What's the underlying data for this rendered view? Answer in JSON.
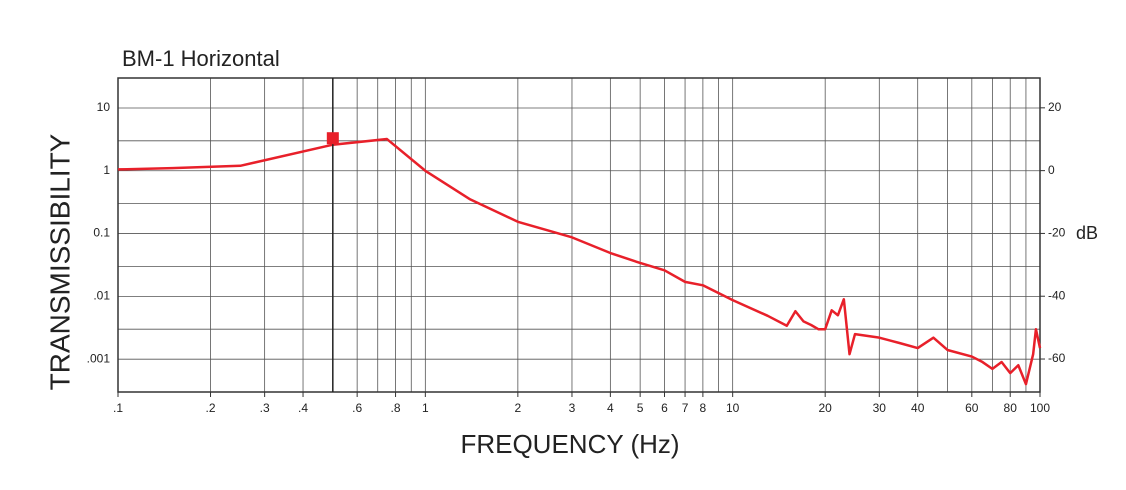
{
  "chart_data": {
    "type": "line",
    "title": "BM-1 Horizontal",
    "xlabel": "FREQUENCY (Hz)",
    "ylabel": "TRANSMISSIBILITY",
    "y2label": "dB",
    "xscale": "log",
    "yscale": "log",
    "grid": true,
    "xlim": [
      0.1,
      100
    ],
    "ylim": [
      0.0003,
      30
    ],
    "y2lim": [
      -70.5,
      29.5
    ],
    "xticks": [
      {
        "value": 0.1,
        "label": ".1"
      },
      {
        "value": 0.2,
        "label": ".2"
      },
      {
        "value": 0.3,
        "label": ".3"
      },
      {
        "value": 0.4,
        "label": ".4"
      },
      {
        "value": 0.6,
        "label": ".6"
      },
      {
        "value": 0.8,
        "label": ".8"
      },
      1,
      2,
      3,
      4,
      5,
      6,
      7,
      8,
      10,
      20,
      30,
      40,
      60,
      80,
      100
    ],
    "xminor": [
      0.5,
      0.7,
      0.9,
      9,
      50,
      70,
      90
    ],
    "yticks": [
      10,
      1,
      0.1,
      {
        "value": 0.01,
        "label": ".01"
      },
      {
        "value": 0.001,
        "label": ".001"
      }
    ],
    "yminor": [
      3,
      0.3,
      0.03,
      0.003
    ],
    "y2ticks": [
      20,
      0,
      -20,
      -40,
      -60
    ],
    "marker": {
      "x": 0.5,
      "y": 3.3,
      "color": "#e8202a"
    },
    "series": [
      {
        "color": "#e8202a",
        "x": [
          0.1,
          0.15,
          0.25,
          0.5,
          0.75,
          1,
          1.4,
          2,
          3,
          4,
          5,
          6,
          7,
          8,
          10,
          13,
          15,
          16,
          17,
          18,
          19,
          20,
          21,
          22,
          23,
          24,
          25,
          30,
          35,
          40,
          45,
          50,
          60,
          65,
          70,
          75,
          80,
          85,
          90,
          95,
          97,
          100
        ],
        "values": [
          1.05,
          1.1,
          1.2,
          2.6,
          3.2,
          1.0,
          0.35,
          0.154,
          0.087,
          0.049,
          0.034,
          0.026,
          0.017,
          0.015,
          0.0087,
          0.0049,
          0.0034,
          0.0058,
          0.004,
          0.0035,
          0.003,
          0.003,
          0.006,
          0.005,
          0.009,
          0.0012,
          0.0025,
          0.0022,
          0.0018,
          0.0015,
          0.0022,
          0.0014,
          0.0011,
          0.0009,
          0.0007,
          0.0009,
          0.0006,
          0.0008,
          0.0004,
          0.0012,
          0.003,
          0.0015
        ]
      }
    ]
  }
}
